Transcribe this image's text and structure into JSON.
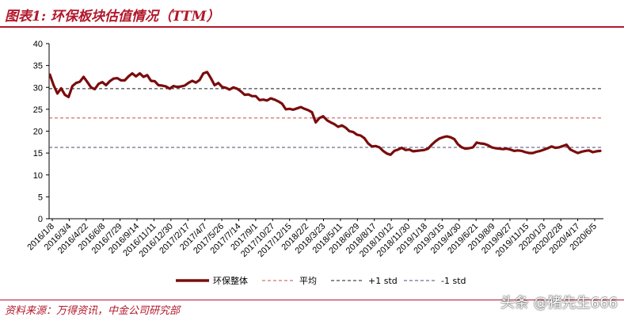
{
  "header": {
    "title": "图表1:  环保板块估值情况（TTM）"
  },
  "footer": {
    "source": "资料来源：万得资讯，中金公司研究部"
  },
  "watermark": {
    "text": "头条 @猪先生666"
  },
  "colors": {
    "series": "#7a0c0c",
    "mean": "#c0504d",
    "plus_std": "#1a1a1a",
    "minus_std": "#4a4a7a",
    "accent": "#b2182b"
  },
  "chart_data": {
    "type": "line",
    "title": "",
    "xlabel": "",
    "ylabel": "",
    "ylim": [
      0,
      40
    ],
    "yticks": [
      0,
      5,
      10,
      15,
      20,
      25,
      30,
      35,
      40
    ],
    "grid": false,
    "legend_position": "bottom",
    "x_tick_labels": [
      "2016/1/8",
      "2016/3/4",
      "2016/4/22",
      "2016/6/8",
      "2016/7/29",
      "2016/9/14",
      "2016/11/11",
      "2016/12/30",
      "2017/2/17",
      "2017/4/7",
      "2017/5/26",
      "2017/7/14",
      "2017/9/1",
      "2017/10/27",
      "2017/12/15",
      "2018/2/2",
      "2018/3/23",
      "2018/5/11",
      "2018/6/29",
      "2018/8/17",
      "2018/10/12",
      "2018/11/30",
      "2019/1/18",
      "2019/3/15",
      "2019/4/30",
      "2019/6/21",
      "2019/8/9",
      "2019/9/27",
      "2019/11/15",
      "2020/1/3",
      "2020/2/28",
      "2020/4/17",
      "2020/6/5"
    ],
    "series": [
      {
        "name": "环保整体",
        "style": "solid",
        "values": [
          32.9,
          30.5,
          28.6,
          29.8,
          28.3,
          27.8,
          30.3,
          31.0,
          31.3,
          32.4,
          31.2,
          30.0,
          29.6,
          30.8,
          31.2,
          30.5,
          31.4,
          32.0,
          32.1,
          31.6,
          31.6,
          32.5,
          33.2,
          32.5,
          33.2,
          32.4,
          32.8,
          31.5,
          31.4,
          30.5,
          30.4,
          30.2,
          29.7,
          30.3,
          30.1,
          30.2,
          30.4,
          31.0,
          31.5,
          31.1,
          31.7,
          33.2,
          33.5,
          32.1,
          30.5,
          31.0,
          30.1,
          29.9,
          29.5,
          30.0,
          29.7,
          29.1,
          28.3,
          28.4,
          28.0,
          28.0,
          27.1,
          27.2,
          27.0,
          27.5,
          27.2,
          26.8,
          26.3,
          25.0,
          25.1,
          24.9,
          25.2,
          25.5,
          25.1,
          24.8,
          24.3,
          22.0,
          23.0,
          23.4,
          22.5,
          22.0,
          21.6,
          21.0,
          21.3,
          20.8,
          20.0,
          19.8,
          19.2,
          19.0,
          18.4,
          17.2,
          16.5,
          16.6,
          16.3,
          15.5,
          14.9,
          14.6,
          15.5,
          15.8,
          16.2,
          15.7,
          15.8,
          15.4,
          15.5,
          15.6,
          15.7,
          16.0,
          16.9,
          17.7,
          18.3,
          18.6,
          18.8,
          18.6,
          18.2,
          17.0,
          16.3,
          16.0,
          16.1,
          16.3,
          17.4,
          17.2,
          17.1,
          16.8,
          16.3,
          16.1,
          16.0,
          15.9,
          16.0,
          15.8,
          15.5,
          15.6,
          15.5,
          15.2,
          15.0,
          15.0,
          15.3,
          15.5,
          15.8,
          16.1,
          16.5,
          16.2,
          16.3,
          16.6,
          16.9,
          15.8,
          15.4,
          15.0,
          15.3,
          15.5,
          15.6,
          15.2,
          15.4,
          15.5
        ]
      },
      {
        "name": "平均",
        "style": "dashed",
        "values": [
          23.0
        ]
      },
      {
        "name": "+1 std",
        "style": "dashed",
        "values": [
          29.7
        ]
      },
      {
        "name": "-1 std",
        "style": "dashed",
        "values": [
          16.3
        ]
      }
    ]
  }
}
